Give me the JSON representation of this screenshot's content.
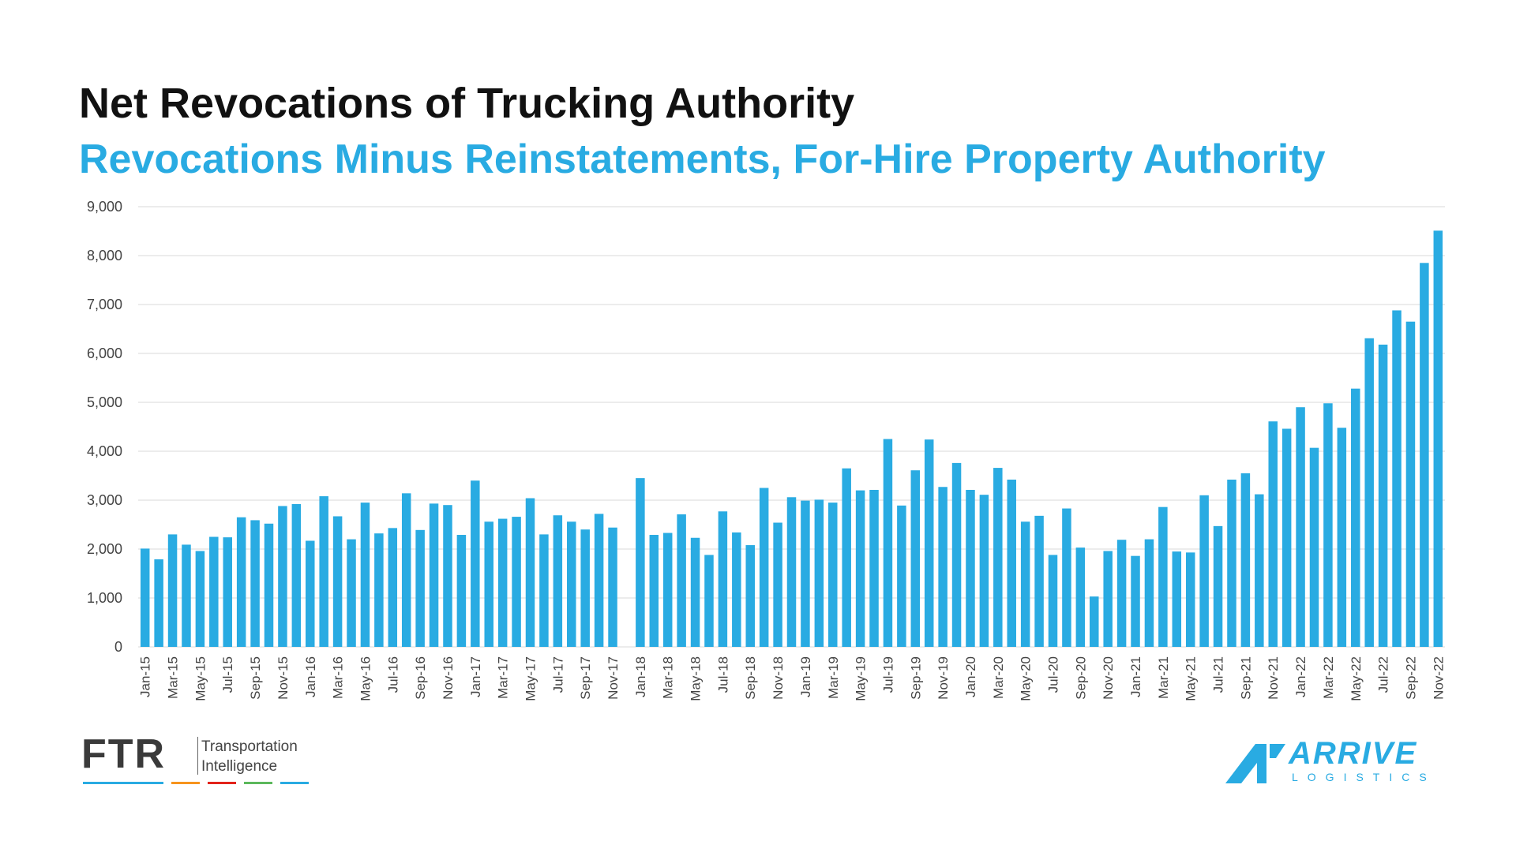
{
  "header": {
    "title": "Net Revocations of Trucking Authority",
    "subtitle": "Revocations Minus Reinstatements, For-Hire Property Authority"
  },
  "colors": {
    "bar": "#29abe2",
    "title": "#111111",
    "subtitle": "#29abe2",
    "grid": "#d9d9d9",
    "axis_text": "#444444",
    "ftr_stripes": [
      "#29abe2",
      "#f7941d",
      "#e2231a",
      "#5cb85c",
      "#29abe2"
    ]
  },
  "chart_data": {
    "type": "bar",
    "title": "Net Revocations of Trucking Authority",
    "subtitle": "Revocations Minus Reinstatements, For-Hire Property Authority",
    "xlabel": "",
    "ylabel": "",
    "ylim": [
      0,
      9000
    ],
    "yticks": [
      0,
      1000,
      2000,
      3000,
      4000,
      5000,
      6000,
      7000,
      8000,
      9000
    ],
    "ytick_labels": [
      "0",
      "1,000",
      "2,000",
      "3,000",
      "4,000",
      "5,000",
      "6,000",
      "7,000",
      "8,000",
      "9,000"
    ],
    "grid": true,
    "legend": "none",
    "categories": [
      "Jan-15",
      "Feb-15",
      "Mar-15",
      "Apr-15",
      "May-15",
      "Jun-15",
      "Jul-15",
      "Aug-15",
      "Sep-15",
      "Oct-15",
      "Nov-15",
      "Dec-15",
      "Jan-16",
      "Feb-16",
      "Mar-16",
      "Apr-16",
      "May-16",
      "Jun-16",
      "Jul-16",
      "Aug-16",
      "Sep-16",
      "Oct-16",
      "Nov-16",
      "Dec-16",
      "Jan-17",
      "Feb-17",
      "Mar-17",
      "Apr-17",
      "May-17",
      "Jun-17",
      "Jul-17",
      "Aug-17",
      "Sep-17",
      "Oct-17",
      "Nov-17",
      "Dec-17",
      "Jan-18",
      "Feb-18",
      "Mar-18",
      "Apr-18",
      "May-18",
      "Jun-18",
      "Jul-18",
      "Aug-18",
      "Sep-18",
      "Oct-18",
      "Nov-18",
      "Dec-18",
      "Jan-19",
      "Feb-19",
      "Mar-19",
      "Apr-19",
      "May-19",
      "Jun-19",
      "Jul-19",
      "Aug-19",
      "Sep-19",
      "Oct-19",
      "Nov-19",
      "Dec-19",
      "Jan-20",
      "Feb-20",
      "Mar-20",
      "Apr-20",
      "May-20",
      "Jun-20",
      "Jul-20",
      "Aug-20",
      "Sep-20",
      "Oct-20",
      "Nov-20",
      "Dec-20",
      "Jan-21",
      "Feb-21",
      "Mar-21",
      "Apr-21",
      "May-21",
      "Jun-21",
      "Jul-21",
      "Aug-21",
      "Sep-21",
      "Oct-21",
      "Nov-21",
      "Dec-21",
      "Jan-22",
      "Feb-22",
      "Mar-22",
      "Apr-22",
      "May-22",
      "Jun-22",
      "Jul-22",
      "Aug-22",
      "Sep-22",
      "Oct-22",
      "Nov-22"
    ],
    "xtick_labels": [
      "Jan-15",
      "Mar-15",
      "May-15",
      "Jul-15",
      "Sep-15",
      "Nov-15",
      "Jan-16",
      "Mar-16",
      "May-16",
      "Jul-16",
      "Sep-16",
      "Nov-16",
      "Jan-17",
      "Mar-17",
      "May-17",
      "Jul-17",
      "Sep-17",
      "Nov-17",
      "Jan-18",
      "Mar-18",
      "May-18",
      "Jul-18",
      "Sep-18",
      "Nov-18",
      "Jan-19",
      "Mar-19",
      "May-19",
      "Jul-19",
      "Sep-19",
      "Nov-19",
      "Jan-20",
      "Mar-20",
      "May-20",
      "Jul-20",
      "Sep-20",
      "Nov-20",
      "Jan-21",
      "Mar-21",
      "May-21",
      "Jul-21",
      "Sep-21",
      "Nov-21",
      "Jan-22",
      "Mar-22",
      "May-22",
      "Jul-22",
      "Sep-22",
      "Nov-22"
    ],
    "values": [
      2010,
      1790,
      2300,
      2090,
      1960,
      2250,
      2240,
      2650,
      2590,
      2520,
      2880,
      2920,
      2170,
      3080,
      2670,
      2200,
      2950,
      2320,
      2430,
      3140,
      2390,
      2930,
      2900,
      2290,
      3400,
      2560,
      2620,
      2660,
      3040,
      2300,
      2690,
      2560,
      2400,
      2720,
      2440,
      null,
      3450,
      2290,
      2330,
      2710,
      2230,
      1880,
      2770,
      2340,
      2080,
      3250,
      2540,
      3060,
      2990,
      3010,
      2950,
      3650,
      3200,
      3210,
      4250,
      2890,
      3610,
      4240,
      3270,
      3760,
      3210,
      3110,
      3660,
      3420,
      2560,
      2680,
      1880,
      2830,
      2030,
      1030,
      1960,
      2190,
      1860,
      2200,
      2860,
      1950,
      1930,
      3100,
      2470,
      3420,
      3550,
      3120,
      4610,
      4460,
      4900,
      4070,
      4980,
      4480,
      5280,
      6310,
      6180,
      6880,
      6650,
      7850,
      8510
    ]
  },
  "logos": {
    "ftr": {
      "mark": "FTR",
      "tagline_line1": "Transportation",
      "tagline_line2": "Intelligence"
    },
    "arrive": {
      "mark": "ARRIVE",
      "sub": "LOGISTICS"
    }
  }
}
